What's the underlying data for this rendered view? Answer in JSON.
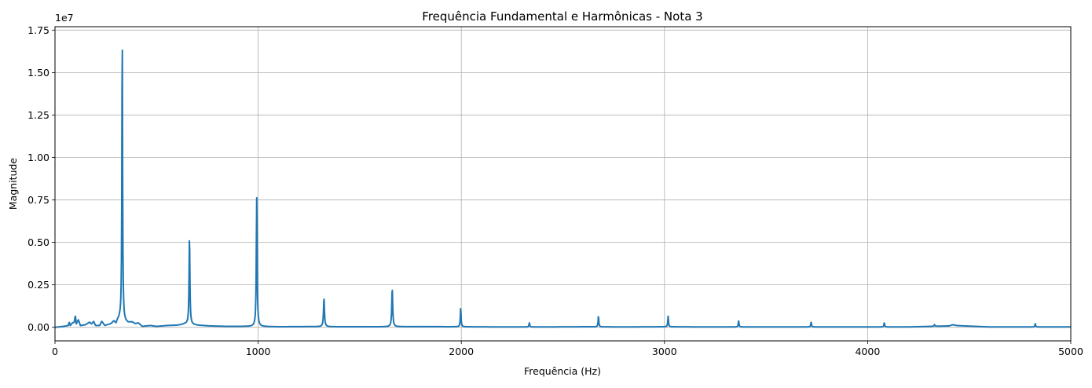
{
  "chart_data": {
    "type": "line",
    "title": "Frequência Fundamental e Harmônicas - Nota 3",
    "xlabel": "Frequência (Hz)",
    "ylabel": "Magnitude",
    "y_scale_label": "1e7",
    "xlim": [
      0,
      5000
    ],
    "ylim": [
      -0.08,
      1.77
    ],
    "x_ticks": [
      0,
      1000,
      2000,
      3000,
      4000,
      5000
    ],
    "x_tick_labels": [
      "0",
      "1000",
      "2000",
      "3000",
      "4000",
      "5000"
    ],
    "y_ticks": [
      0.0,
      0.25,
      0.5,
      0.75,
      1.0,
      1.25,
      1.5,
      1.75
    ],
    "y_tick_labels": [
      "0.00",
      "0.25",
      "0.50",
      "0.75",
      "1.00",
      "1.25",
      "1.50",
      "1.75"
    ],
    "grid": true,
    "series_color": "#1f77b4",
    "baseline": [
      [
        0,
        0.0
      ],
      [
        40,
        0.005
      ],
      [
        65,
        0.01
      ],
      [
        70,
        0.03
      ],
      [
        75,
        0.01
      ],
      [
        85,
        0.025
      ],
      [
        95,
        0.03
      ],
      [
        100,
        0.07
      ],
      [
        105,
        0.02
      ],
      [
        115,
        0.045
      ],
      [
        125,
        0.01
      ],
      [
        150,
        0.015
      ],
      [
        170,
        0.03
      ],
      [
        180,
        0.02
      ],
      [
        190,
        0.035
      ],
      [
        200,
        0.01
      ],
      [
        220,
        0.01
      ],
      [
        230,
        0.035
      ],
      [
        245,
        0.01
      ],
      [
        260,
        0.015
      ],
      [
        275,
        0.02
      ],
      [
        290,
        0.035
      ],
      [
        300,
        0.02
      ],
      [
        308,
        0.04
      ],
      [
        320,
        0.05
      ],
      [
        340,
        0.03
      ],
      [
        360,
        0.025
      ],
      [
        380,
        0.03
      ],
      [
        395,
        0.02
      ],
      [
        410,
        0.025
      ],
      [
        430,
        0.005
      ],
      [
        470,
        0.01
      ],
      [
        500,
        0.005
      ],
      [
        550,
        0.01
      ],
      [
        600,
        0.012
      ],
      [
        620,
        0.015
      ],
      [
        640,
        0.02
      ],
      [
        700,
        0.012
      ],
      [
        760,
        0.008
      ],
      [
        850,
        0.005
      ],
      [
        940,
        0.005
      ],
      [
        1100,
        0.003
      ],
      [
        1250,
        0.004
      ],
      [
        1400,
        0.003
      ],
      [
        1600,
        0.003
      ],
      [
        1800,
        0.004
      ],
      [
        2000,
        0.003
      ],
      [
        2200,
        0.002
      ],
      [
        2400,
        0.002
      ],
      [
        2600,
        0.003
      ],
      [
        2800,
        0.002
      ],
      [
        3000,
        0.003
      ],
      [
        3200,
        0.002
      ],
      [
        3400,
        0.002
      ],
      [
        3600,
        0.002
      ],
      [
        3800,
        0.002
      ],
      [
        4000,
        0.002
      ],
      [
        4200,
        0.002
      ],
      [
        4400,
        0.008
      ],
      [
        4420,
        0.015
      ],
      [
        4440,
        0.01
      ],
      [
        4600,
        0.002
      ],
      [
        4800,
        0.002
      ],
      [
        5000,
        0.002
      ]
    ],
    "peaks": [
      {
        "x": 331,
        "y": 1.69,
        "width": 3
      },
      {
        "x": 662,
        "y": 0.514,
        "width": 3.5
      },
      {
        "x": 993,
        "y": 0.758,
        "width": 3.5
      },
      {
        "x": 1324,
        "y": 0.168,
        "width": 4
      },
      {
        "x": 1660,
        "y": 0.222,
        "width": 4
      },
      {
        "x": 1997,
        "y": 0.113,
        "width": 3
      },
      {
        "x": 2335,
        "y": 0.025,
        "width": 3
      },
      {
        "x": 2675,
        "y": 0.063,
        "width": 3
      },
      {
        "x": 3018,
        "y": 0.062,
        "width": 3
      },
      {
        "x": 3365,
        "y": 0.037,
        "width": 3
      },
      {
        "x": 3722,
        "y": 0.029,
        "width": 3
      },
      {
        "x": 4082,
        "y": 0.025,
        "width": 3
      },
      {
        "x": 4329,
        "y": 0.01,
        "width": 3
      },
      {
        "x": 4825,
        "y": 0.02,
        "width": 3
      }
    ]
  }
}
